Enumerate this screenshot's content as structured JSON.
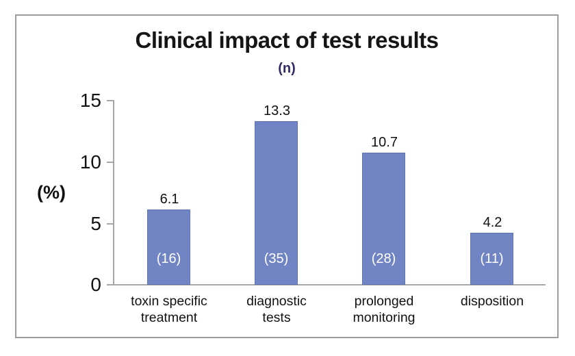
{
  "header": {
    "title": "Clinical impact of test results",
    "subtitle": "(n)",
    "subtitle_color": "#312a64"
  },
  "chart_data": {
    "type": "bar",
    "title": "Clinical impact of test results",
    "subtitle": "(n)",
    "xlabel": "",
    "ylabel": "(%)",
    "ylim": [
      0,
      15
    ],
    "yticks": [
      0,
      5,
      10,
      15
    ],
    "ytick_labels": [
      "15",
      "10",
      "5",
      "0"
    ],
    "grid": false,
    "legend": "none",
    "bar_color": "#7185c4",
    "axis_color": "#a6a6a6",
    "categories": [
      "toxin specific treatment",
      "diagnostic tests",
      "prolonged monitoring",
      "disposition"
    ],
    "values": [
      6.1,
      13.3,
      10.7,
      4.2
    ],
    "counts": [
      16,
      35,
      28,
      11
    ],
    "bars": [
      {
        "category": "toxin specific\ntreatment",
        "value": 6.1,
        "value_label": "6.1",
        "count_label": "(16)"
      },
      {
        "category": "diagnostic\ntests",
        "value": 13.3,
        "value_label": "13.3",
        "count_label": "(35)"
      },
      {
        "category": "prolonged\nmonitoring",
        "value": 10.7,
        "value_label": "10.7",
        "count_label": "(28)"
      },
      {
        "category": "disposition",
        "value": 4.2,
        "value_label": "4.2",
        "count_label": "(11)"
      }
    ]
  }
}
